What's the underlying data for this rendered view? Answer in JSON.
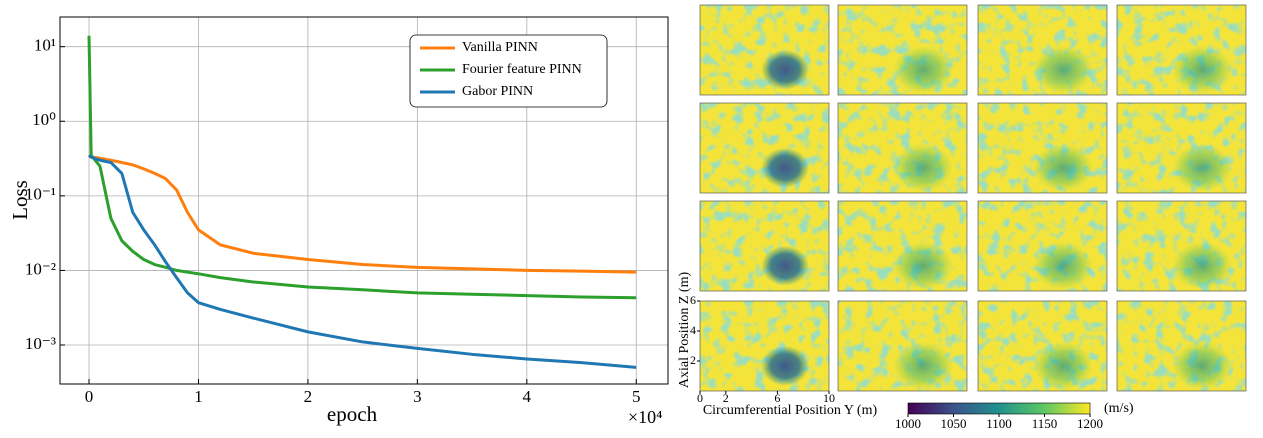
{
  "chart_data": [
    {
      "type": "line",
      "xlabel": "epoch",
      "ylabel": "Loss",
      "x_offset_label": "×10⁴",
      "x": [
        0,
        200,
        1000,
        2000,
        3000,
        4000,
        5000,
        6000,
        7000,
        8000,
        9000,
        10000,
        12000,
        15000,
        20000,
        25000,
        30000,
        35000,
        40000,
        45000,
        50000
      ],
      "series": [
        {
          "name": "Vanilla PINN",
          "color": "#ff7f0e",
          "values": [
            0.35,
            0.33,
            0.32,
            0.3,
            0.28,
            0.26,
            0.23,
            0.2,
            0.17,
            0.12,
            0.06,
            0.035,
            0.022,
            0.017,
            0.014,
            0.012,
            0.011,
            0.0105,
            0.01,
            0.0098,
            0.0095
          ]
        },
        {
          "name": "Fourier feature PINN",
          "color": "#2ca02c",
          "values": [
            14,
            0.35,
            0.25,
            0.05,
            0.025,
            0.018,
            0.014,
            0.012,
            0.011,
            0.01,
            0.0095,
            0.009,
            0.008,
            0.007,
            0.006,
            0.0055,
            0.005,
            0.0048,
            0.0046,
            0.0044,
            0.0043
          ]
        },
        {
          "name": "Gabor PINN",
          "color": "#1f77b4",
          "values": [
            0.35,
            0.33,
            0.3,
            0.28,
            0.2,
            0.06,
            0.035,
            0.022,
            0.013,
            0.008,
            0.005,
            0.0037,
            0.003,
            0.0023,
            0.0015,
            0.0011,
            0.0009,
            0.00075,
            0.00065,
            0.00058,
            0.0005
          ]
        }
      ],
      "xlim": [
        -2650,
        52900
      ],
      "xticks": [
        {
          "value": 0,
          "label": "0"
        },
        {
          "value": 10000,
          "label": "1"
        },
        {
          "value": 20000,
          "label": "2"
        },
        {
          "value": 30000,
          "label": "3"
        },
        {
          "value": 40000,
          "label": "4"
        },
        {
          "value": 50000,
          "label": "5"
        }
      ],
      "ylim": [
        0.0003,
        25
      ],
      "yscale": "log",
      "yticks": [
        {
          "value": 10,
          "label": "10¹"
        },
        {
          "value": 1,
          "label": "10⁰"
        },
        {
          "value": 0.1,
          "label": "10⁻¹"
        },
        {
          "value": 0.01,
          "label": "10⁻²"
        },
        {
          "value": 0.001,
          "label": "10⁻³"
        }
      ],
      "grid": true,
      "legend": "upper right"
    },
    {
      "type": "heatmap",
      "xlabel": "Circumferential Position Y (m)",
      "ylabel": "Axial Position Z (m)",
      "xlim": [
        0,
        10
      ],
      "xticks": [
        0,
        2,
        6,
        10
      ],
      "ylim": [
        0,
        6
      ],
      "yticks": [
        2,
        4,
        6
      ],
      "colormap": "viridis",
      "colorbar": {
        "lim": [
          1000,
          1200
        ],
        "ticks": [
          1000,
          1050,
          1100,
          1150,
          1200
        ],
        "label": "(m/s)"
      }
    }
  ]
}
